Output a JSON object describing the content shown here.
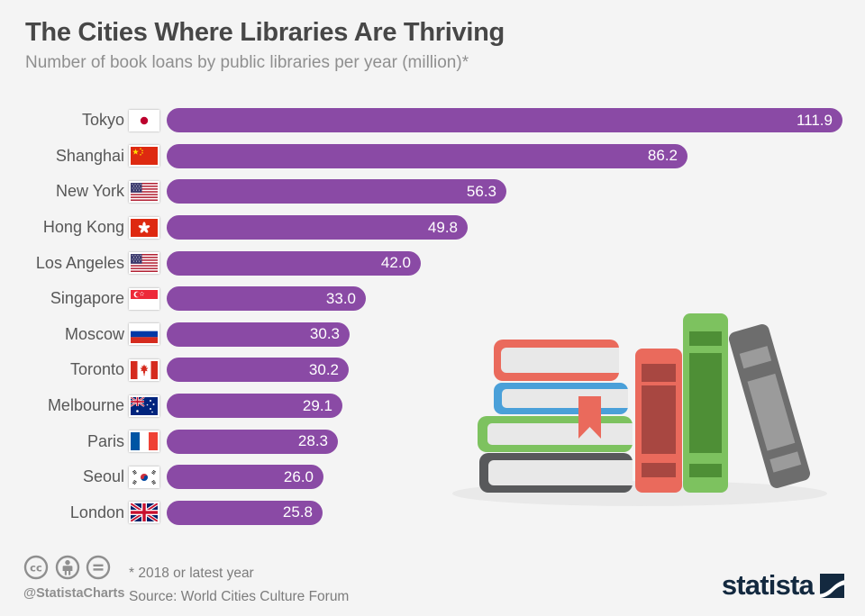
{
  "header": {
    "title": "The Cities Where Libraries Are Thriving",
    "subtitle": "Number of book loans by public libraries per year (million)*"
  },
  "chart_data": {
    "type": "bar",
    "orientation": "horizontal",
    "title": "The Cities Where Libraries Are Thriving",
    "xlabel": "",
    "ylabel": "",
    "unit": "million book loans per year",
    "xlim": [
      0,
      111.9
    ],
    "grid": false,
    "bar_color": "#8a4aa5",
    "value_label_color": "#ffffff",
    "categories": [
      "Tokyo",
      "Shanghai",
      "New York",
      "Hong Kong",
      "Los Angeles",
      "Singapore",
      "Moscow",
      "Toronto",
      "Melbourne",
      "Paris",
      "Seoul",
      "London"
    ],
    "values": [
      111.9,
      86.2,
      56.3,
      49.8,
      42.0,
      33.0,
      30.3,
      30.2,
      29.1,
      28.3,
      26.0,
      25.8
    ],
    "flags": [
      {
        "code": "jp",
        "name": "japan"
      },
      {
        "code": "cn",
        "name": "china"
      },
      {
        "code": "us",
        "name": "united-states"
      },
      {
        "code": "hk",
        "name": "hong-kong"
      },
      {
        "code": "us",
        "name": "united-states"
      },
      {
        "code": "sg",
        "name": "singapore"
      },
      {
        "code": "ru",
        "name": "russia"
      },
      {
        "code": "ca",
        "name": "canada"
      },
      {
        "code": "au",
        "name": "australia"
      },
      {
        "code": "fr",
        "name": "france"
      },
      {
        "code": "kr",
        "name": "south-korea"
      },
      {
        "code": "gb",
        "name": "united-kingdom"
      }
    ]
  },
  "footer": {
    "handle": "@StatistaCharts",
    "license_icons": [
      "cc",
      "attribution",
      "no-derivatives"
    ],
    "footnote": "* 2018 or latest year",
    "source": "Source: World Cities Culture Forum",
    "brand": "statista"
  },
  "colors": {
    "background": "#f4f4f4",
    "bar": "#8a4aa5",
    "title_text": "#474747",
    "subtitle_text": "#8f8f8f",
    "label_text": "#575757",
    "footer_text": "#7c7c7c",
    "cc_gray": "#8f8f8f",
    "brand_navy": "#13293f"
  }
}
